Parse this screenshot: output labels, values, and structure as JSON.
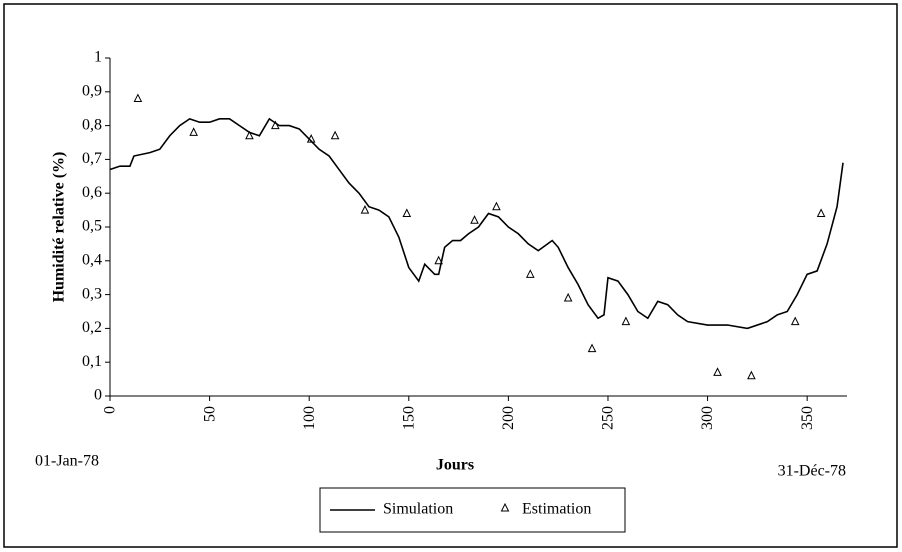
{
  "chart_data": {
    "type": "line",
    "xlabel": "Jours",
    "ylabel": "Humidité relative (%)",
    "annotations": [
      "01-Jan-78",
      "31-Déc-78"
    ],
    "xlim": [
      0,
      370
    ],
    "xticks": [
      0,
      50,
      100,
      150,
      200,
      250,
      300,
      350
    ],
    "ylim": [
      0,
      1
    ],
    "yticks": [
      0,
      {
        "value": 0.1,
        "label": "0,1"
      },
      {
        "value": 0.2,
        "label": "0,2"
      },
      {
        "value": 0.3,
        "label": "0,3"
      },
      {
        "value": 0.4,
        "label": "0,4"
      },
      {
        "value": 0.5,
        "label": "0,5"
      },
      {
        "value": 0.6,
        "label": "0,6"
      },
      {
        "value": 0.7,
        "label": "0,7"
      },
      {
        "value": 0.8,
        "label": "0,8"
      },
      {
        "value": 0.9,
        "label": "0,9"
      },
      1
    ],
    "grid": false,
    "legend": "bottom",
    "series": [
      {
        "name": "Simulation",
        "kind": "line",
        "color": "#000000",
        "x": [
          0,
          5,
          10,
          12,
          20,
          25,
          30,
          35,
          40,
          45,
          50,
          55,
          60,
          65,
          70,
          75,
          80,
          85,
          90,
          95,
          100,
          105,
          110,
          115,
          120,
          125,
          130,
          135,
          140,
          145,
          150,
          155,
          158,
          163,
          165,
          168,
          172,
          176,
          180,
          185,
          190,
          195,
          200,
          205,
          210,
          215,
          222,
          225,
          230,
          235,
          240,
          245,
          248,
          250,
          255,
          260,
          265,
          270,
          275,
          280,
          285,
          290,
          300,
          310,
          320,
          330,
          335,
          340,
          345,
          350,
          355,
          360,
          365,
          368
        ],
        "values": [
          0.67,
          0.68,
          0.68,
          0.71,
          0.72,
          0.73,
          0.77,
          0.8,
          0.82,
          0.81,
          0.81,
          0.82,
          0.82,
          0.8,
          0.78,
          0.77,
          0.82,
          0.8,
          0.8,
          0.79,
          0.76,
          0.73,
          0.71,
          0.67,
          0.63,
          0.6,
          0.56,
          0.55,
          0.53,
          0.47,
          0.38,
          0.34,
          0.39,
          0.36,
          0.36,
          0.44,
          0.46,
          0.46,
          0.48,
          0.5,
          0.54,
          0.53,
          0.5,
          0.48,
          0.45,
          0.43,
          0.46,
          0.44,
          0.38,
          0.33,
          0.27,
          0.23,
          0.24,
          0.35,
          0.34,
          0.3,
          0.25,
          0.23,
          0.28,
          0.27,
          0.24,
          0.22,
          0.21,
          0.21,
          0.2,
          0.22,
          0.24,
          0.25,
          0.3,
          0.36,
          0.37,
          0.45,
          0.56,
          0.69
        ]
      },
      {
        "name": "Estimation",
        "kind": "marker",
        "color": "#000000",
        "x": [
          14,
          42,
          70,
          83,
          101,
          113,
          128,
          149,
          165,
          183,
          194,
          211,
          230,
          242,
          259,
          305,
          322,
          344,
          357
        ],
        "values": [
          0.88,
          0.78,
          0.77,
          0.8,
          0.76,
          0.77,
          0.55,
          0.54,
          0.4,
          0.52,
          0.56,
          0.36,
          0.29,
          0.14,
          0.22,
          0.07,
          0.06,
          0.22,
          0.54
        ]
      }
    ]
  }
}
